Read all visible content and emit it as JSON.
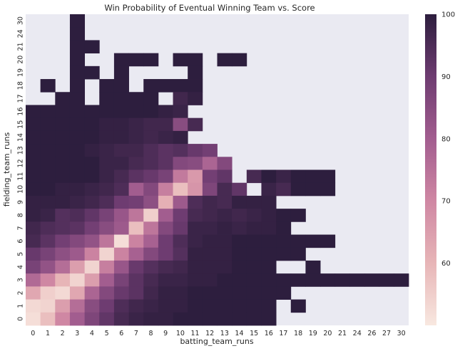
{
  "chart_data": {
    "type": "heatmap",
    "title": "Win Probability of Eventual Winning Team vs. Score",
    "xlabel": "batting_team_runs",
    "ylabel": "fielding_team_runs",
    "x_categories": [
      "0",
      "1",
      "2",
      "3",
      "4",
      "5",
      "6",
      "7",
      "8",
      "9",
      "10",
      "11",
      "12",
      "13",
      "14",
      "15",
      "16",
      "17",
      "18",
      "19",
      "20",
      "21",
      "24",
      "26",
      "27",
      "30"
    ],
    "y_categories": [
      "0",
      "1",
      "2",
      "3",
      "4",
      "5",
      "6",
      "7",
      "8",
      "9",
      "10",
      "11",
      "12",
      "13",
      "14",
      "15",
      "16",
      "17",
      "18",
      "19",
      "20",
      "21",
      "24",
      "30"
    ],
    "colorbar": {
      "min": 50,
      "max": 100,
      "ticks": [
        60,
        70,
        80,
        90,
        100
      ]
    },
    "missing_color": "#eaeaf2",
    "low_color": "#f8e8e0",
    "mid_color": "#c9779c",
    "high_color": "#2d1e3e",
    "rows": [
      {
        "y": "30",
        "values": [
          null,
          null,
          null,
          100,
          null,
          null,
          null,
          null,
          null,
          null,
          null,
          null,
          null,
          null,
          null,
          null,
          null,
          null,
          null,
          null,
          null,
          null,
          null,
          null,
          null,
          null
        ]
      },
      {
        "y": "24",
        "values": [
          null,
          null,
          null,
          100,
          null,
          null,
          null,
          null,
          null,
          null,
          null,
          null,
          null,
          null,
          null,
          null,
          null,
          null,
          null,
          null,
          null,
          null,
          null,
          null,
          null,
          null
        ]
      },
      {
        "y": "21",
        "values": [
          null,
          null,
          null,
          100,
          100,
          null,
          null,
          null,
          null,
          null,
          null,
          null,
          null,
          null,
          null,
          null,
          null,
          null,
          null,
          null,
          null,
          null,
          null,
          null,
          null,
          null
        ]
      },
      {
        "y": "20",
        "values": [
          null,
          null,
          null,
          100,
          null,
          null,
          100,
          100,
          100,
          null,
          100,
          100,
          null,
          100,
          100,
          null,
          null,
          null,
          null,
          null,
          null,
          null,
          null,
          null,
          null,
          null
        ]
      },
      {
        "y": "19",
        "values": [
          null,
          null,
          null,
          100,
          100,
          null,
          100,
          null,
          null,
          null,
          null,
          100,
          null,
          null,
          null,
          null,
          null,
          null,
          null,
          null,
          null,
          null,
          null,
          null,
          null,
          null
        ]
      },
      {
        "y": "18",
        "values": [
          null,
          100,
          null,
          100,
          null,
          100,
          100,
          null,
          100,
          100,
          100,
          100,
          null,
          null,
          null,
          null,
          null,
          null,
          null,
          null,
          null,
          null,
          null,
          null,
          null,
          null
        ]
      },
      {
        "y": "17",
        "values": [
          null,
          null,
          100,
          100,
          null,
          100,
          100,
          100,
          100,
          null,
          97,
          99,
          null,
          null,
          null,
          null,
          null,
          null,
          null,
          null,
          null,
          null,
          null,
          null,
          null,
          null
        ]
      },
      {
        "y": "16",
        "values": [
          100,
          100,
          100,
          100,
          100,
          100,
          100,
          100,
          100,
          99,
          98,
          null,
          null,
          null,
          null,
          null,
          null,
          null,
          null,
          null,
          null,
          null,
          null,
          null,
          null,
          null
        ]
      },
      {
        "y": "15",
        "values": [
          100,
          100,
          100,
          100,
          100,
          99,
          99,
          98,
          97,
          97,
          85,
          96,
          null,
          null,
          null,
          null,
          null,
          null,
          null,
          null,
          null,
          null,
          null,
          null,
          null,
          null
        ]
      },
      {
        "y": "14",
        "values": [
          100,
          100,
          100,
          100,
          100,
          99,
          99,
          98,
          97,
          98,
          99,
          null,
          null,
          null,
          null,
          null,
          null,
          null,
          null,
          null,
          null,
          null,
          null,
          null,
          null,
          null
        ]
      },
      {
        "y": "13",
        "values": [
          100,
          100,
          100,
          100,
          99,
          98,
          97,
          97,
          95,
          93,
          94,
          91,
          89,
          null,
          null,
          null,
          null,
          null,
          null,
          null,
          null,
          null,
          null,
          null,
          null,
          null
        ]
      },
      {
        "y": "12",
        "values": [
          100,
          100,
          100,
          100,
          100,
          98,
          98,
          96,
          95,
          93,
          86,
          85,
          78,
          86,
          null,
          null,
          null,
          null,
          null,
          null,
          null,
          null,
          null,
          null,
          null,
          null
        ]
      },
      {
        "y": "11",
        "values": [
          100,
          100,
          100,
          100,
          100,
          98,
          96,
          93,
          91,
          88,
          73,
          66,
          89,
          92,
          null,
          96,
          100,
          98,
          100,
          100,
          100,
          null,
          null,
          null,
          null,
          null
        ]
      },
      {
        "y": "10",
        "values": [
          100,
          100,
          99,
          99,
          98,
          97,
          95,
          80,
          86,
          72,
          58,
          67,
          87,
          96,
          92,
          null,
          98,
          96,
          100,
          100,
          100,
          null,
          null,
          null,
          null,
          null
        ]
      },
      {
        "y": "9",
        "values": [
          99,
          99,
          99,
          98,
          97,
          95,
          90,
          89,
          84,
          61,
          81,
          95,
          97,
          96,
          99,
          99,
          99,
          null,
          null,
          null,
          null,
          null,
          null,
          null,
          null,
          null
        ]
      },
      {
        "y": "8",
        "values": [
          99,
          98,
          94,
          95,
          92,
          88,
          82,
          74,
          55,
          80,
          90,
          96,
          97,
          98,
          97,
          98,
          99,
          100,
          100,
          null,
          null,
          null,
          null,
          null,
          null,
          null
        ]
      },
      {
        "y": "7",
        "values": [
          97,
          95,
          94,
          93,
          89,
          85,
          81,
          58,
          74,
          86,
          91,
          98,
          98,
          99,
          98,
          99,
          99,
          100,
          null,
          null,
          null,
          null,
          null,
          null,
          null,
          null
        ]
      },
      {
        "y": "6",
        "values": [
          96,
          93,
          89,
          86,
          83,
          74,
          52,
          71,
          79,
          90,
          95,
          98,
          99,
          99,
          100,
          100,
          100,
          100,
          100,
          100,
          100,
          null,
          null,
          null,
          null,
          null
        ]
      },
      {
        "y": "5",
        "values": [
          91,
          88,
          84,
          81,
          71,
          54,
          71,
          79,
          86,
          90,
          94,
          99,
          99,
          99,
          100,
          100,
          100,
          100,
          100,
          null,
          null,
          null,
          null,
          null,
          null,
          null
        ]
      },
      {
        "y": "4",
        "values": [
          88,
          83,
          76,
          65,
          54,
          72,
          82,
          91,
          94,
          96,
          97,
          99,
          99,
          99,
          100,
          100,
          100,
          null,
          null,
          100,
          null,
          null,
          null,
          null,
          null,
          null
        ]
      },
      {
        "y": "3",
        "values": [
          77,
          70,
          60,
          54,
          65,
          80,
          88,
          93,
          96,
          98,
          98,
          99,
          99,
          100,
          100,
          100,
          100,
          100,
          100,
          100,
          100,
          100,
          100,
          100,
          100,
          100
        ]
      },
      {
        "y": "2",
        "values": [
          63,
          55,
          53,
          63,
          78,
          86,
          91,
          93,
          97,
          99,
          99,
          100,
          100,
          100,
          100,
          100,
          100,
          100,
          null,
          null,
          null,
          null,
          null,
          null,
          null,
          null
        ]
      },
      {
        "y": "1",
        "values": [
          53,
          54,
          65,
          76,
          85,
          90,
          95,
          97,
          98,
          99,
          99,
          100,
          100,
          100,
          100,
          100,
          100,
          null,
          100,
          null,
          null,
          null,
          null,
          null,
          null,
          null
        ]
      },
      {
        "y": "0",
        "values": [
          52,
          58,
          70,
          80,
          87,
          92,
          96,
          98,
          99,
          99,
          100,
          100,
          100,
          100,
          100,
          100,
          100,
          null,
          null,
          null,
          null,
          null,
          null,
          null,
          null,
          null
        ]
      }
    ]
  }
}
